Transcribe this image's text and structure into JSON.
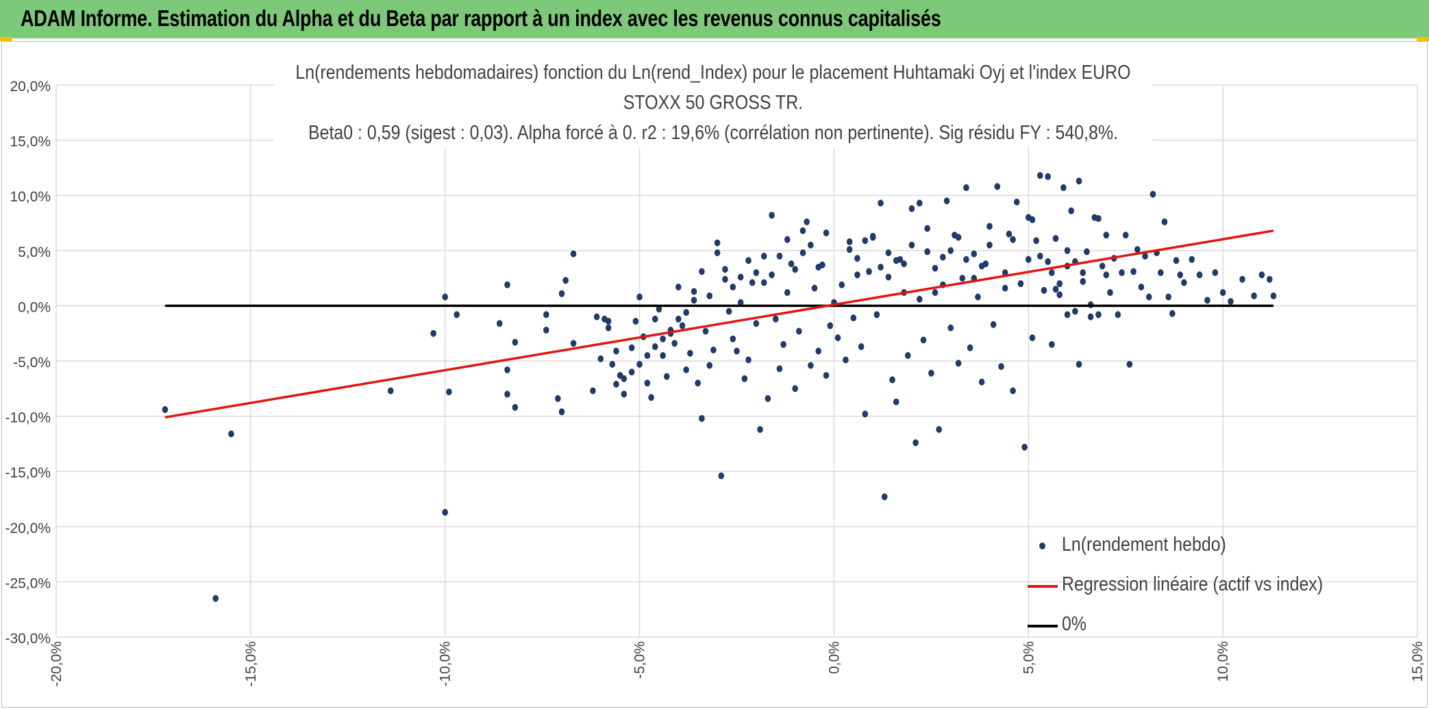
{
  "header": {
    "title": "ADAM Informe. Estimation du Alpha et du Beta par rapport à un index avec les revenus connus capitalisés"
  },
  "colors": {
    "header_bg": "#7dc97a",
    "points": "#1f3a6b",
    "regression": "#e3140f",
    "zero_line": "#000000",
    "grid": "#d9d9d9",
    "axis_text": "#404040"
  },
  "chart_data": {
    "type": "scatter",
    "title_line1": "Ln(rendements hebdomadaires) fonction du Ln(rend_Index) pour le placement Huhtamaki Oyj et l'index EURO STOXX 50 GROSS TR.",
    "title_line2": "Beta0 : 0,59 (sigest : 0,03). Alpha forcé à 0. r2 : 19,6% (corrélation non pertinente). Sig résidu FY : 540,8%.",
    "xlim": [
      -0.2,
      0.15
    ],
    "ylim": [
      -0.3,
      0.2
    ],
    "x_ticks": [
      -0.2,
      -0.15,
      -0.1,
      -0.05,
      0.0,
      0.05,
      0.1,
      0.15
    ],
    "x_tick_labels": [
      "-20,0%",
      "-15,0%",
      "-10,0%",
      "-5,0%",
      "0,0%",
      "5,0%",
      "10,0%",
      "15,0%"
    ],
    "y_ticks": [
      0.2,
      0.15,
      0.1,
      0.05,
      0.0,
      -0.05,
      -0.1,
      -0.15,
      -0.2,
      -0.25,
      -0.3
    ],
    "y_tick_labels": [
      "20,0%",
      "15,0%",
      "10,0%",
      "5,0%",
      "0,0%",
      "-5,0%",
      "-10,0%",
      "-15,0%",
      "-20,0%",
      "-25,0%",
      "-30,0%"
    ],
    "grid": true,
    "legend_position": "bottom-right",
    "series": [
      {
        "name": "Ln(rendement hebdo)",
        "kind": "points",
        "points": [
          [
            -0.172,
            -0.094
          ],
          [
            -0.155,
            -0.116
          ],
          [
            -0.159,
            -0.265
          ],
          [
            -0.114,
            -0.077
          ],
          [
            -0.103,
            -0.025
          ],
          [
            -0.1,
            0.008
          ],
          [
            -0.099,
            -0.078
          ],
          [
            -0.097,
            -0.008
          ],
          [
            -0.1,
            -0.187
          ],
          [
            -0.086,
            -0.016
          ],
          [
            -0.084,
            0.019
          ],
          [
            -0.084,
            -0.058
          ],
          [
            -0.084,
            -0.08
          ],
          [
            -0.082,
            -0.033
          ],
          [
            -0.082,
            -0.092
          ],
          [
            -0.074,
            -0.008
          ],
          [
            -0.074,
            -0.022
          ],
          [
            -0.071,
            -0.084
          ],
          [
            -0.07,
            0.011
          ],
          [
            -0.069,
            0.023
          ],
          [
            -0.07,
            -0.096
          ],
          [
            -0.067,
            0.047
          ],
          [
            -0.067,
            -0.034
          ],
          [
            -0.062,
            -0.077
          ],
          [
            -0.061,
            -0.01
          ],
          [
            -0.059,
            -0.012
          ],
          [
            -0.058,
            -0.02
          ],
          [
            -0.057,
            -0.053
          ],
          [
            -0.056,
            -0.041
          ],
          [
            -0.055,
            -0.063
          ],
          [
            -0.054,
            -0.08
          ],
          [
            -0.052,
            -0.038
          ],
          [
            -0.051,
            -0.014
          ],
          [
            -0.05,
            0.008
          ],
          [
            -0.049,
            -0.028
          ],
          [
            -0.048,
            -0.07
          ],
          [
            -0.047,
            -0.083
          ],
          [
            -0.046,
            -0.012
          ],
          [
            -0.045,
            -0.003
          ],
          [
            -0.044,
            -0.045
          ],
          [
            -0.043,
            -0.064
          ],
          [
            -0.042,
            -0.025
          ],
          [
            -0.041,
            -0.034
          ],
          [
            -0.04,
            0.017
          ],
          [
            -0.039,
            -0.018
          ],
          [
            -0.038,
            -0.058
          ],
          [
            -0.037,
            -0.043
          ],
          [
            -0.036,
            0.013
          ],
          [
            -0.035,
            -0.07
          ],
          [
            -0.034,
            -0.102
          ],
          [
            -0.033,
            -0.023
          ],
          [
            -0.032,
            -0.054
          ],
          [
            -0.031,
            -0.04
          ],
          [
            -0.03,
            0.057
          ],
          [
            -0.029,
            -0.154
          ],
          [
            -0.028,
            0.024
          ],
          [
            -0.027,
            -0.005
          ],
          [
            -0.026,
            -0.03
          ],
          [
            -0.025,
            -0.041
          ],
          [
            -0.024,
            0.003
          ],
          [
            -0.023,
            -0.066
          ],
          [
            -0.022,
            -0.049
          ],
          [
            -0.021,
            0.021
          ],
          [
            -0.02,
            -0.016
          ],
          [
            -0.019,
            -0.112
          ],
          [
            -0.018,
            0.045
          ],
          [
            -0.017,
            -0.084
          ],
          [
            -0.016,
            0.082
          ],
          [
            -0.015,
            -0.012
          ],
          [
            -0.014,
            -0.057
          ],
          [
            -0.013,
            -0.035
          ],
          [
            -0.012,
            0.012
          ],
          [
            -0.011,
            0.038
          ],
          [
            -0.01,
            -0.075
          ],
          [
            -0.009,
            -0.023
          ],
          [
            -0.008,
            0.068
          ],
          [
            -0.007,
            0.076
          ],
          [
            -0.006,
            -0.054
          ],
          [
            -0.005,
            0.016
          ],
          [
            -0.004,
            -0.041
          ],
          [
            -0.003,
            0.037
          ],
          [
            -0.002,
            -0.063
          ],
          [
            -0.001,
            -0.018
          ],
          [
            0.0,
            0.003
          ],
          [
            0.001,
            -0.029
          ],
          [
            0.002,
            0.019
          ],
          [
            0.003,
            -0.049
          ],
          [
            0.004,
            0.058
          ],
          [
            0.005,
            -0.011
          ],
          [
            0.006,
            0.028
          ],
          [
            0.007,
            -0.037
          ],
          [
            0.008,
            -0.098
          ],
          [
            0.009,
            0.031
          ],
          [
            0.01,
            0.063
          ],
          [
            0.011,
            -0.008
          ],
          [
            0.012,
            0.093
          ],
          [
            0.013,
            -0.173
          ],
          [
            0.014,
            0.026
          ],
          [
            0.015,
            -0.067
          ],
          [
            0.016,
            -0.087
          ],
          [
            0.017,
            0.042
          ],
          [
            0.018,
            0.012
          ],
          [
            0.019,
            -0.045
          ],
          [
            0.02,
            0.088
          ],
          [
            0.021,
            -0.124
          ],
          [
            0.022,
            0.006
          ],
          [
            0.023,
            -0.031
          ],
          [
            0.024,
            0.049
          ],
          [
            0.025,
            -0.061
          ],
          [
            0.026,
            0.034
          ],
          [
            0.027,
            -0.112
          ],
          [
            0.028,
            0.019
          ],
          [
            0.029,
            0.095
          ],
          [
            0.03,
            -0.02
          ],
          [
            0.031,
            0.064
          ],
          [
            0.032,
            -0.052
          ],
          [
            0.033,
            0.025
          ],
          [
            0.034,
            0.107
          ],
          [
            0.035,
            -0.038
          ],
          [
            0.036,
            0.047
          ],
          [
            0.037,
            0.008
          ],
          [
            0.038,
            -0.069
          ],
          [
            0.039,
            0.038
          ],
          [
            0.04,
            0.055
          ],
          [
            0.041,
            -0.017
          ],
          [
            0.042,
            0.108
          ],
          [
            0.043,
            -0.055
          ],
          [
            0.044,
            0.016
          ],
          [
            0.045,
            0.065
          ],
          [
            0.046,
            -0.077
          ],
          [
            0.047,
            0.094
          ],
          [
            0.048,
            0.02
          ],
          [
            0.049,
            -0.128
          ],
          [
            0.05,
            0.042
          ],
          [
            0.051,
            -0.029
          ],
          [
            0.052,
            0.059
          ],
          [
            0.053,
            0.118
          ],
          [
            0.054,
            0.014
          ],
          [
            0.055,
            0.117
          ],
          [
            0.056,
            -0.035
          ],
          [
            0.057,
            0.061
          ],
          [
            0.058,
            0.01
          ],
          [
            0.059,
            0.107
          ],
          [
            0.06,
            0.036
          ],
          [
            0.061,
            0.086
          ],
          [
            0.062,
            -0.005
          ],
          [
            0.063,
            0.113
          ],
          [
            0.064,
            0.022
          ],
          [
            0.065,
            0.049
          ],
          [
            0.066,
            0.001
          ],
          [
            0.067,
            0.08
          ],
          [
            0.068,
            0.079
          ],
          [
            0.069,
            0.036
          ],
          [
            0.07,
            0.064
          ],
          [
            0.071,
            0.012
          ],
          [
            0.072,
            0.043
          ],
          [
            0.073,
            -0.008
          ],
          [
            0.074,
            0.03
          ],
          [
            0.075,
            0.064
          ],
          [
            0.076,
            -0.053
          ],
          [
            0.077,
            0.031
          ],
          [
            0.078,
            0.051
          ],
          [
            0.079,
            0.017
          ],
          [
            0.08,
            0.045
          ],
          [
            0.081,
            0.008
          ],
          [
            0.082,
            0.101
          ],
          [
            0.083,
            0.048
          ],
          [
            0.084,
            0.03
          ],
          [
            0.085,
            0.076
          ],
          [
            0.086,
            0.008
          ],
          [
            0.087,
            -0.007
          ],
          [
            0.088,
            0.041
          ],
          [
            0.089,
            0.028
          ],
          [
            0.09,
            0.021
          ],
          [
            0.092,
            0.042
          ],
          [
            0.094,
            0.028
          ],
          [
            0.096,
            0.005
          ],
          [
            0.098,
            0.03
          ],
          [
            0.1,
            0.012
          ],
          [
            0.102,
            0.004
          ],
          [
            0.105,
            0.024
          ],
          [
            0.108,
            0.009
          ],
          [
            0.11,
            0.028
          ],
          [
            0.112,
            0.024
          ],
          [
            0.113,
            0.009
          ],
          [
            0.05,
            0.08
          ],
          [
            0.051,
            0.078
          ],
          [
            0.053,
            0.045
          ],
          [
            0.055,
            0.04
          ],
          [
            0.056,
            0.03
          ],
          [
            0.058,
            0.02
          ],
          [
            0.06,
            0.05
          ],
          [
            0.062,
            0.04
          ],
          [
            0.064,
            0.03
          ],
          [
            0.066,
            -0.01
          ],
          [
            0.068,
            -0.008
          ],
          [
            0.07,
            0.028
          ],
          [
            0.063,
            -0.053
          ],
          [
            0.06,
            -0.008
          ],
          [
            0.057,
            0.015
          ],
          [
            0.046,
            0.06
          ],
          [
            0.044,
            0.03
          ],
          [
            0.04,
            0.072
          ],
          [
            0.038,
            0.036
          ],
          [
            0.036,
            0.025
          ],
          [
            0.034,
            0.042
          ],
          [
            0.032,
            0.062
          ],
          [
            0.03,
            0.05
          ],
          [
            0.028,
            0.044
          ],
          [
            0.026,
            0.012
          ],
          [
            0.024,
            0.07
          ],
          [
            0.022,
            0.093
          ],
          [
            0.02,
            0.055
          ],
          [
            0.018,
            0.038
          ],
          [
            0.016,
            0.041
          ],
          [
            0.014,
            0.048
          ],
          [
            0.012,
            0.035
          ],
          [
            0.01,
            0.062
          ],
          [
            0.008,
            0.059
          ],
          [
            0.006,
            0.043
          ],
          [
            0.004,
            0.051
          ],
          [
            -0.002,
            0.066
          ],
          [
            -0.004,
            0.035
          ],
          [
            -0.006,
            0.055
          ],
          [
            -0.008,
            0.048
          ],
          [
            -0.01,
            0.033
          ],
          [
            -0.012,
            0.06
          ],
          [
            -0.014,
            0.045
          ],
          [
            -0.016,
            0.028
          ],
          [
            -0.018,
            0.021
          ],
          [
            -0.02,
            0.03
          ],
          [
            -0.022,
            0.041
          ],
          [
            -0.024,
            0.026
          ],
          [
            -0.026,
            0.017
          ],
          [
            -0.028,
            0.033
          ],
          [
            -0.03,
            0.048
          ],
          [
            -0.032,
            0.009
          ],
          [
            -0.034,
            0.031
          ],
          [
            -0.036,
            0.005
          ],
          [
            -0.038,
            -0.006
          ],
          [
            -0.04,
            -0.012
          ],
          [
            -0.042,
            -0.022
          ],
          [
            -0.044,
            -0.03
          ],
          [
            -0.046,
            -0.037
          ],
          [
            -0.048,
            -0.045
          ],
          [
            -0.05,
            -0.053
          ],
          [
            -0.052,
            -0.06
          ],
          [
            -0.054,
            -0.066
          ],
          [
            -0.056,
            -0.071
          ],
          [
            -0.058,
            -0.014
          ],
          [
            -0.06,
            -0.048
          ]
        ]
      },
      {
        "name": "Regression linéaire (actif vs index)",
        "kind": "line",
        "points": [
          [
            -0.172,
            -0.101
          ],
          [
            0.113,
            0.068
          ]
        ]
      },
      {
        "name": "0%",
        "kind": "line",
        "points": [
          [
            -0.172,
            0.0
          ],
          [
            0.113,
            0.0
          ]
        ]
      }
    ]
  }
}
